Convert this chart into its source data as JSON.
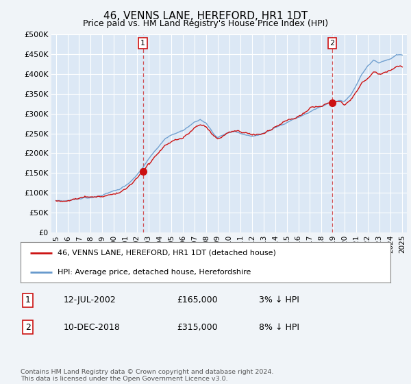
{
  "title": "46, VENNS LANE, HEREFORD, HR1 1DT",
  "subtitle": "Price paid vs. HM Land Registry's House Price Index (HPI)",
  "ylabel_ticks": [
    "£0",
    "£50K",
    "£100K",
    "£150K",
    "£200K",
    "£250K",
    "£300K",
    "£350K",
    "£400K",
    "£450K",
    "£500K"
  ],
  "ytick_values": [
    0,
    50000,
    100000,
    150000,
    200000,
    250000,
    300000,
    350000,
    400000,
    450000,
    500000
  ],
  "xlim_start": 1994.6,
  "xlim_end": 2025.4,
  "ylim": [
    0,
    500000
  ],
  "background_color": "#f0f4f8",
  "plot_bg_color": "#dce8f5",
  "grid_color": "#ffffff",
  "hpi_color": "#6699cc",
  "price_color": "#cc1111",
  "transaction1_x": 2002.53,
  "transaction1_price": 165000,
  "transaction1_date": "12-JUL-2002",
  "transaction1_hpi": "3% ↓ HPI",
  "transaction2_x": 2018.94,
  "transaction2_price": 315000,
  "transaction2_date": "10-DEC-2018",
  "transaction2_hpi": "8% ↓ HPI",
  "legend_label1": "46, VENNS LANE, HEREFORD, HR1 1DT (detached house)",
  "legend_label2": "HPI: Average price, detached house, Herefordshire",
  "footer": "Contains HM Land Registry data © Crown copyright and database right 2024.\nThis data is licensed under the Open Government Licence v3.0.",
  "xtick_years": [
    1995,
    1996,
    1997,
    1998,
    1999,
    2000,
    2001,
    2002,
    2003,
    2004,
    2005,
    2006,
    2007,
    2008,
    2009,
    2010,
    2011,
    2012,
    2013,
    2014,
    2015,
    2016,
    2017,
    2018,
    2019,
    2020,
    2021,
    2022,
    2023,
    2024,
    2025
  ],
  "marker_color": "#cc1111",
  "marker_size": 7
}
